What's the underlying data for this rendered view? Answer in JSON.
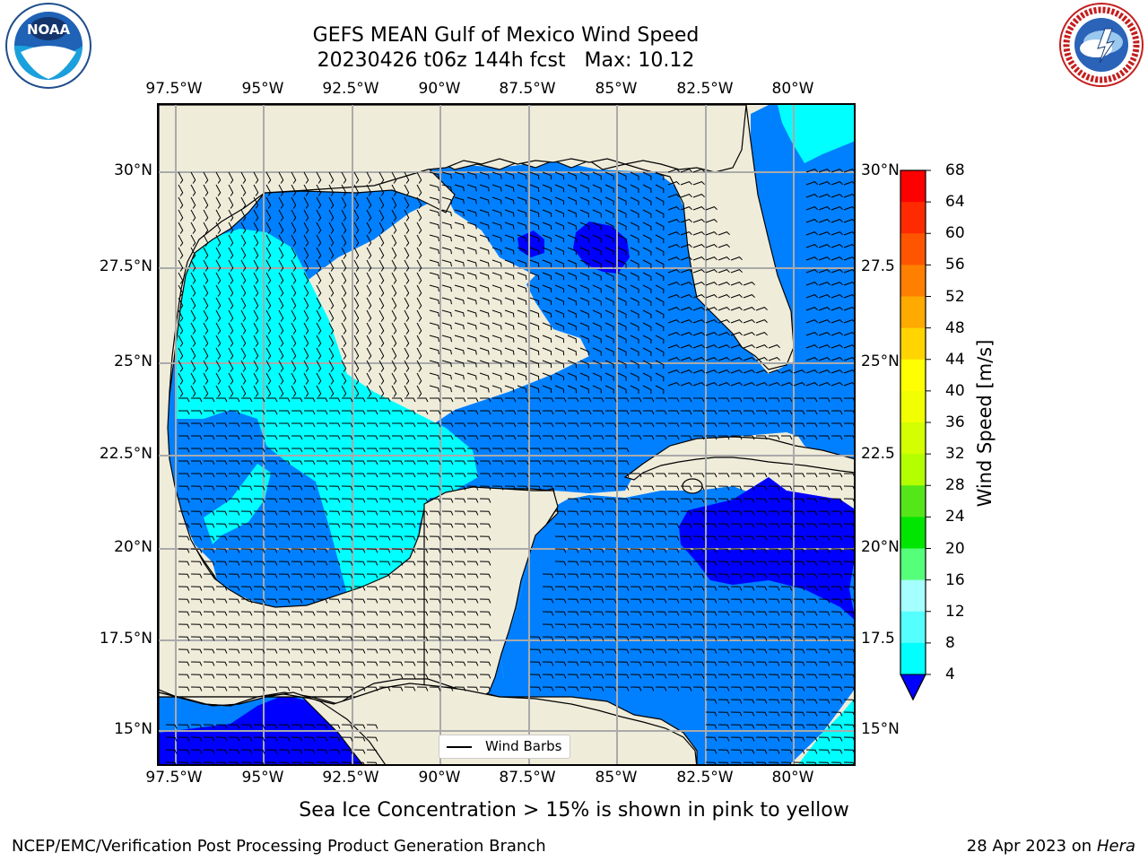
{
  "title_line1": "GEFS MEAN Gulf of Mexico Wind Speed",
  "title_line2": "20230426 t06z 144h fcst   Max: 10.12",
  "subtitle": "Sea Ice Concentration > 15% is shown in pink to yellow",
  "footer_left": "NCEP/EMC/Verification Post Processing Product Generation Branch",
  "footer_right_date": "28 Apr 2023 on ",
  "footer_right_machine": "Hera",
  "legend_label": "Wind Barbs",
  "logos": {
    "left": "noaa-logo",
    "right": "nws-logo"
  },
  "map": {
    "lon_labels": [
      "97.5°W",
      "95°W",
      "92.5°W",
      "90°W",
      "87.5°W",
      "85°W",
      "82.5°W",
      "80°W"
    ],
    "lat_labels_left": [
      "30°N",
      "27.5°N",
      "25°N",
      "22.5°N",
      "20°N",
      "17.5°N",
      "15°N"
    ],
    "lat_labels_right": [
      "30°N",
      "27.5",
      "25°N",
      "22.5",
      "20°N",
      "17.5",
      "15°N"
    ],
    "projection": "lat-lon",
    "lon_range": [
      -98,
      -78.5
    ],
    "lat_range": [
      14,
      31.6
    ],
    "land_color": "#efecda",
    "grid": true
  },
  "colorbar": {
    "label": "Wind Speed [m/s]",
    "ticks": [
      "68",
      "64",
      "60",
      "56",
      "52",
      "48",
      "44",
      "40",
      "36",
      "32",
      "28",
      "24",
      "20",
      "16",
      "12",
      "8",
      "4"
    ],
    "colors": [
      "#ff0000",
      "#ff2a00",
      "#ff5500",
      "#ff8000",
      "#ffaa00",
      "#ffd400",
      "#ffff00",
      "#f2ff00",
      "#d4ff00",
      "#b3ff00",
      "#66e619",
      "#00e600",
      "#3dff3d",
      "#55ff7a",
      "#a6ffff",
      "#55ffff",
      "#00ffff",
      "#00ddff",
      "#0080ff",
      "#0000ff"
    ],
    "extend": "min"
  },
  "chart_data": {
    "type": "heatmap",
    "variable": "Wind Speed",
    "units": "m/s",
    "max": 10.12,
    "levels": [
      4,
      8,
      12,
      16,
      20,
      24,
      28,
      32,
      36,
      40,
      44,
      48,
      52,
      56,
      60,
      64,
      68
    ]
  }
}
